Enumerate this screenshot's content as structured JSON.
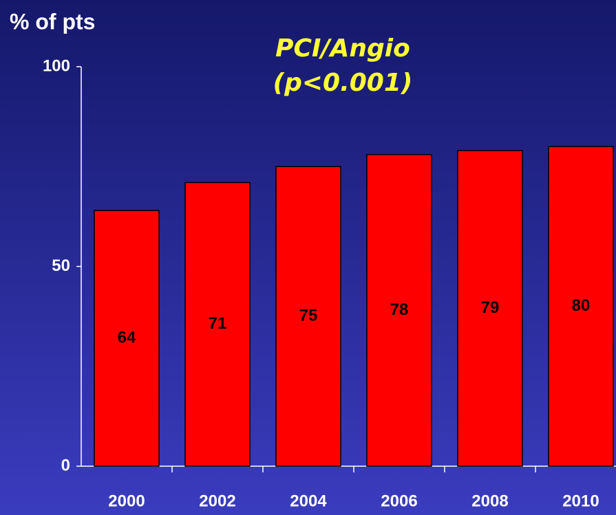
{
  "chart_data": {
    "type": "bar",
    "title": "PCI/Angio",
    "subtitle": "(p<0.001)",
    "y_label": "% of pts",
    "categories": [
      "2000",
      "2002",
      "2004",
      "2006",
      "2008",
      "2010"
    ],
    "values": [
      64,
      71,
      75,
      78,
      79,
      80
    ],
    "color": "#ff0000",
    "ylim": [
      0,
      100
    ],
    "yticks": [
      0,
      50,
      100
    ]
  }
}
